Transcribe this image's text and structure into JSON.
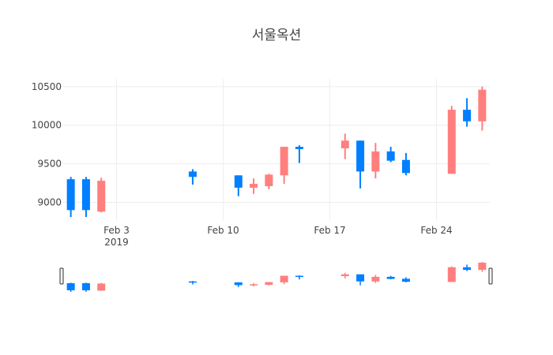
{
  "chart_data": {
    "type": "candlestick",
    "title": "서울옥션",
    "xlabel": "",
    "ylabel": "",
    "x_ticks": [
      {
        "date": "2019-02-03",
        "label": "Feb 3",
        "sublabel": "2019"
      },
      {
        "date": "2019-02-10",
        "label": "Feb 10",
        "sublabel": ""
      },
      {
        "date": "2019-02-17",
        "label": "Feb 17",
        "sublabel": ""
      },
      {
        "date": "2019-02-24",
        "label": "Feb 24",
        "sublabel": ""
      }
    ],
    "y_ticks": [
      9000,
      9500,
      10000,
      10500
    ],
    "xlim": [
      "2019-01-30T12:00",
      "2019-02-27T12:00"
    ],
    "ylim": [
      8760,
      10600
    ],
    "increasing_color": "#ff7f7f",
    "decreasing_color": "#007fff",
    "candles": [
      {
        "date": "2019-01-31",
        "open": 9300,
        "high": 9330,
        "low": 8810,
        "close": 8900
      },
      {
        "date": "2019-02-01",
        "open": 9300,
        "high": 9330,
        "low": 8810,
        "close": 8900
      },
      {
        "date": "2019-02-02",
        "open": 8880,
        "high": 9320,
        "low": 8870,
        "close": 9280
      },
      {
        "date": "2019-02-08",
        "open": 9400,
        "high": 9430,
        "low": 9230,
        "close": 9330
      },
      {
        "date": "2019-02-11",
        "open": 9350,
        "high": 9350,
        "low": 9080,
        "close": 9190
      },
      {
        "date": "2019-02-12",
        "open": 9190,
        "high": 9310,
        "low": 9110,
        "close": 9240
      },
      {
        "date": "2019-02-13",
        "open": 9210,
        "high": 9370,
        "low": 9170,
        "close": 9360
      },
      {
        "date": "2019-02-14",
        "open": 9350,
        "high": 9720,
        "low": 9240,
        "close": 9720
      },
      {
        "date": "2019-02-15",
        "open": 9720,
        "high": 9740,
        "low": 9510,
        "close": 9690
      },
      {
        "date": "2019-02-18",
        "open": 9700,
        "high": 9890,
        "low": 9560,
        "close": 9800
      },
      {
        "date": "2019-02-19",
        "open": 9800,
        "high": 9800,
        "low": 9180,
        "close": 9400
      },
      {
        "date": "2019-02-20",
        "open": 9400,
        "high": 9770,
        "low": 9310,
        "close": 9660
      },
      {
        "date": "2019-02-21",
        "open": 9660,
        "high": 9720,
        "low": 9520,
        "close": 9540
      },
      {
        "date": "2019-02-22",
        "open": 9550,
        "high": 9640,
        "low": 9350,
        "close": 9380
      },
      {
        "date": "2019-02-25",
        "open": 9370,
        "high": 10250,
        "low": 9370,
        "close": 10200
      },
      {
        "date": "2019-02-26",
        "open": 10200,
        "high": 10350,
        "low": 9980,
        "close": 10050
      },
      {
        "date": "2019-02-27",
        "open": 10050,
        "high": 10500,
        "low": 9930,
        "close": 10460
      }
    ],
    "grid": true,
    "range_slider": true,
    "legend": "none"
  }
}
